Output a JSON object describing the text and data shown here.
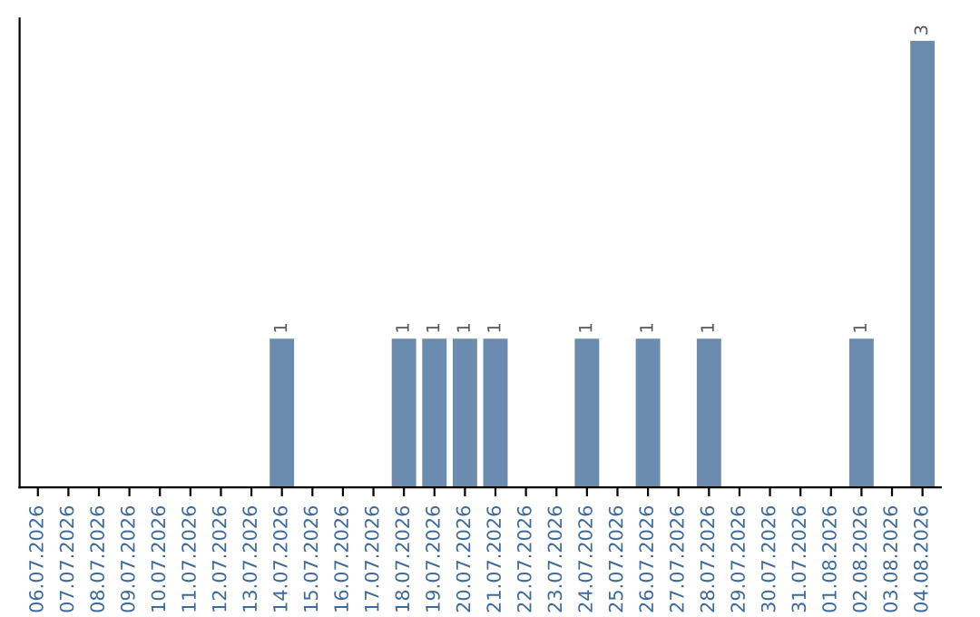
{
  "chart_data": {
    "type": "bar",
    "categories": [
      "06.07.2026",
      "07.07.2026",
      "08.07.2026",
      "09.07.2026",
      "10.07.2026",
      "11.07.2026",
      "12.07.2026",
      "13.07.2026",
      "14.07.2026",
      "15.07.2026",
      "16.07.2026",
      "17.07.2026",
      "18.07.2026",
      "19.07.2026",
      "20.07.2026",
      "21.07.2026",
      "22.07.2026",
      "23.07.2026",
      "24.07.2026",
      "25.07.2026",
      "26.07.2026",
      "27.07.2026",
      "28.07.2026",
      "29.07.2026",
      "30.07.2026",
      "31.07.2026",
      "01.08.2026",
      "02.08.2026",
      "03.08.2026",
      "04.08.2026"
    ],
    "values": [
      0,
      0,
      0,
      0,
      0,
      0,
      0,
      0,
      1,
      0,
      0,
      0,
      1,
      1,
      1,
      1,
      0,
      0,
      1,
      0,
      1,
      0,
      1,
      0,
      0,
      0,
      0,
      1,
      0,
      3
    ],
    "value_labels": [
      null,
      null,
      null,
      null,
      null,
      null,
      null,
      null,
      "1",
      null,
      null,
      null,
      "1",
      "1",
      "1",
      "1",
      null,
      null,
      "1",
      null,
      "1",
      null,
      "1",
      null,
      null,
      null,
      null,
      "1",
      null,
      "3"
    ],
    "color": "#6b8cae",
    "grid": false,
    "legend": false,
    "tick_labels": "x"
  }
}
